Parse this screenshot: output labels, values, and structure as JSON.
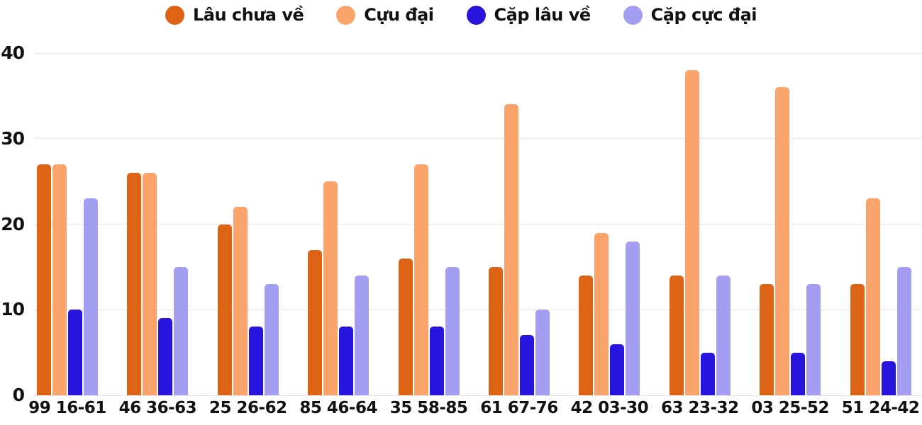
{
  "chart_data": {
    "type": "bar",
    "title": "",
    "xlabel": "",
    "ylabel": "",
    "categories": [
      "99 16-61",
      "46 36-63",
      "25 26-62",
      "85 46-64",
      "35 58-85",
      "61 67-76",
      "42 03-30",
      "63 23-32",
      "03 25-52",
      "51 24-42"
    ],
    "series": [
      {
        "name": "Lâu chưa về",
        "color": "#DC6414",
        "values": [
          27,
          26,
          20,
          17,
          16,
          15,
          14,
          14,
          13,
          13
        ]
      },
      {
        "name": "Cựu đại",
        "color": "#FAA46C",
        "values": [
          27,
          26,
          22,
          25,
          27,
          34,
          19,
          38,
          36,
          23
        ]
      },
      {
        "name": "Cặp lâu về",
        "color": "#2814DC",
        "values": [
          10,
          9,
          8,
          8,
          8,
          7,
          6,
          5,
          5,
          4
        ]
      },
      {
        "name": "Cặp cực đại",
        "color": "#A39EF2",
        "values": [
          23,
          15,
          13,
          14,
          15,
          10,
          18,
          14,
          13,
          15
        ]
      }
    ],
    "yticks": [
      0,
      10,
      20,
      30,
      40
    ],
    "ylim": [
      0,
      40
    ],
    "grid": true,
    "legend_position": "top",
    "colors": {
      "grid": "#E4E4E4",
      "text": "#111111",
      "background": "#FFFFFF"
    }
  }
}
